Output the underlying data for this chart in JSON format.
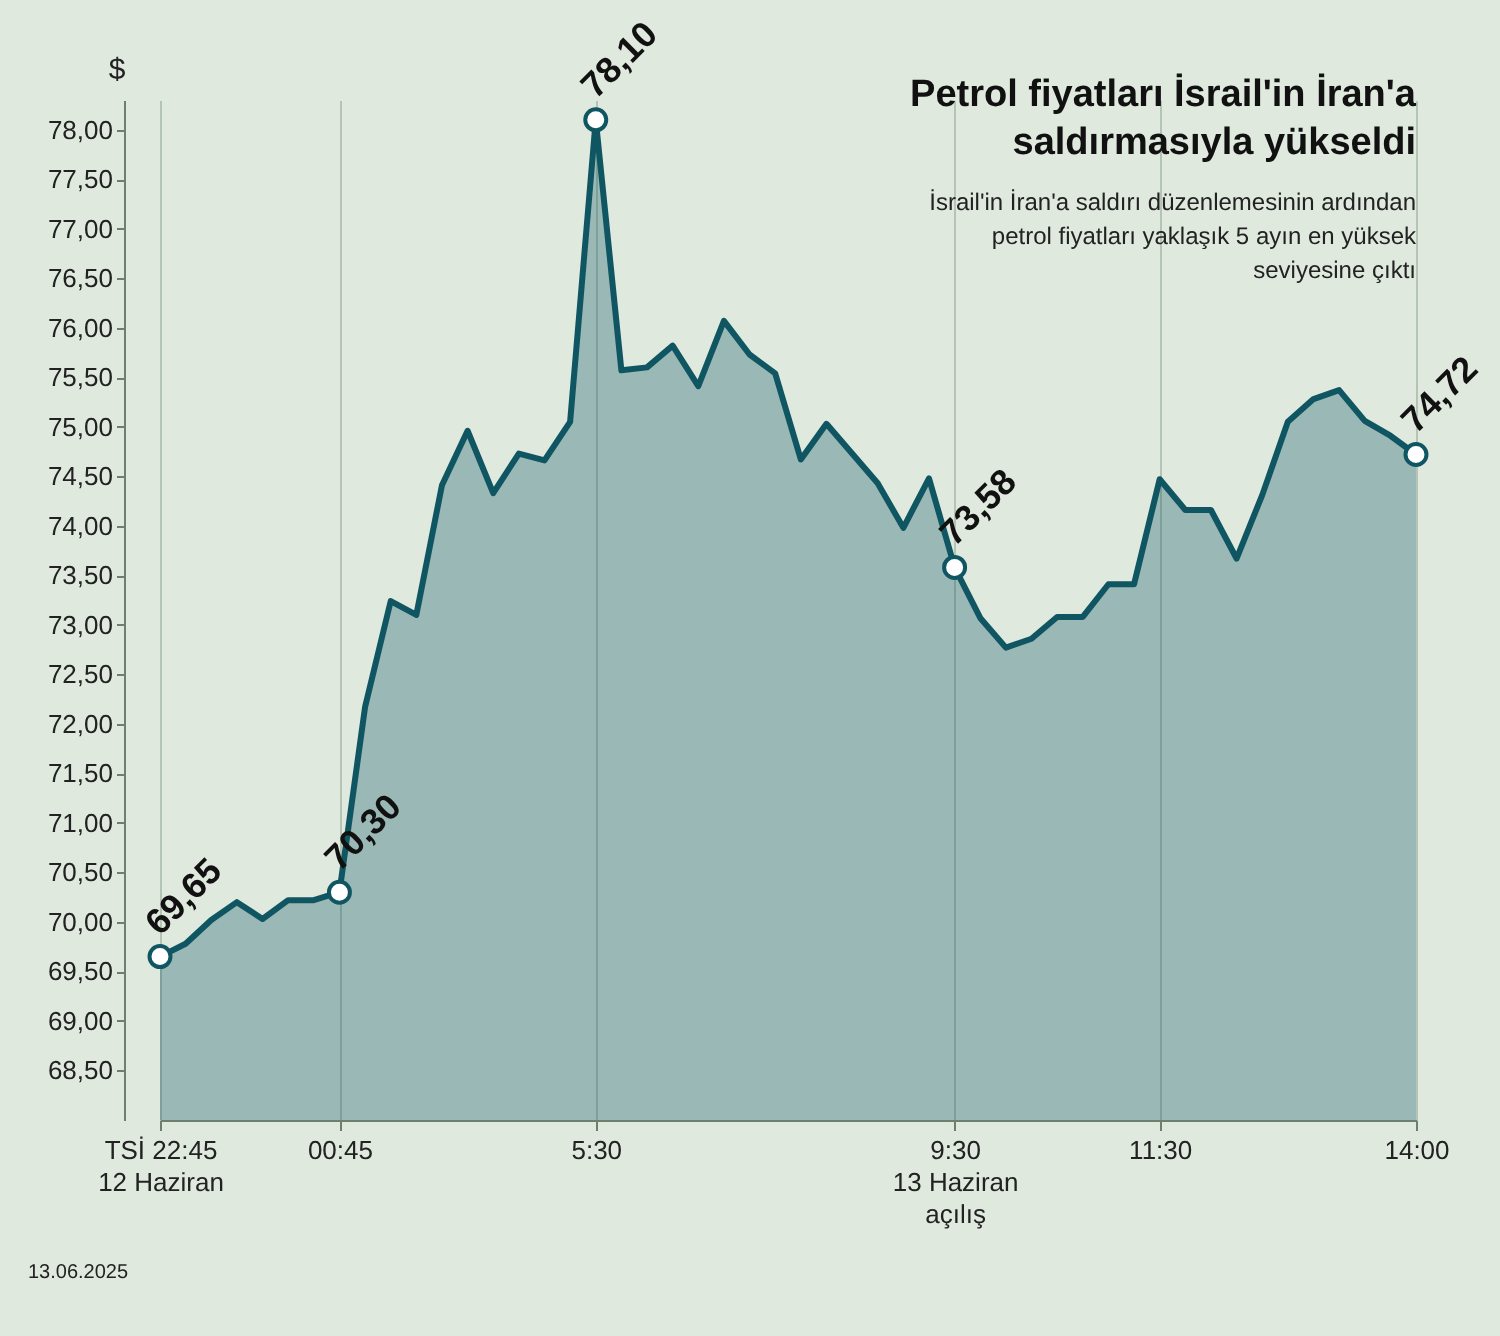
{
  "chart_data": {
    "type": "area",
    "title": "Petrol fiyatları İsrail'in İran'a saldırmasıyla yükseldi",
    "subtitle": "İsrail'in İran'a saldırı düzenlemesinin ardından petrol fiyatları yaklaşık 5 ayın en yüksek seviyesine çıktı",
    "ylabel": "$",
    "annotations": [
      "13.06.2025"
    ],
    "categories": [
      "TSİ 22:45\n12 Haziran",
      null,
      null,
      null,
      null,
      null,
      null,
      "00:45",
      null,
      null,
      null,
      null,
      null,
      null,
      null,
      null,
      null,
      "5:30",
      null,
      null,
      null,
      null,
      null,
      null,
      null,
      null,
      null,
      null,
      null,
      null,
      null,
      "9:30\n13 Haziran\naçılış",
      null,
      null,
      null,
      null,
      null,
      null,
      null,
      "11:30",
      null,
      null,
      null,
      null,
      null,
      null,
      null,
      null,
      null,
      "14:00"
    ],
    "series": [
      {
        "color": "#0f5662",
        "values": [
          69.65,
          69.78,
          70.02,
          70.2,
          70.03,
          70.22,
          70.22,
          70.3,
          72.17,
          73.24,
          73.1,
          74.41,
          74.96,
          74.33,
          74.73,
          74.66,
          75.05,
          78.1,
          75.57,
          75.6,
          75.82,
          75.41,
          76.07,
          75.73,
          75.54,
          74.67,
          75.03,
          74.73,
          74.43,
          73.98,
          74.48,
          73.58,
          73.07,
          72.77,
          72.86,
          73.08,
          73.08,
          73.41,
          73.41,
          74.47,
          74.16,
          74.16,
          73.67,
          74.31,
          75.05,
          75.28,
          75.37,
          75.06,
          74.91,
          74.72
        ],
        "value_labels": [
          "69,65",
          null,
          null,
          null,
          null,
          null,
          null,
          "70,30",
          null,
          null,
          null,
          null,
          null,
          null,
          null,
          null,
          null,
          "78,10",
          null,
          null,
          null,
          null,
          null,
          null,
          null,
          null,
          null,
          null,
          null,
          null,
          null,
          "73,58",
          null,
          null,
          null,
          null,
          null,
          null,
          null,
          null,
          null,
          null,
          null,
          null,
          null,
          null,
          null,
          null,
          null,
          "74,72"
        ]
      }
    ],
    "ylim": [
      68,
      78.3
    ],
    "yticks": [
      {
        "value": 68.5,
        "label": "68,50"
      },
      {
        "value": 69,
        "label": "69,00"
      },
      {
        "value": 69.5,
        "label": "69,50"
      },
      {
        "value": 70,
        "label": "70,00"
      },
      {
        "value": 70.5,
        "label": "70,50"
      },
      {
        "value": 71,
        "label": "71,00"
      },
      {
        "value": 71.5,
        "label": "71,50"
      },
      {
        "value": 72,
        "label": "72,00"
      },
      {
        "value": 72.5,
        "label": "72,50"
      },
      {
        "value": 73,
        "label": "73,00"
      },
      {
        "value": 73.5,
        "label": "73,50"
      },
      {
        "value": 74,
        "label": "74,00"
      },
      {
        "value": 74.5,
        "label": "74,50"
      },
      {
        "value": 75,
        "label": "75,00"
      },
      {
        "value": 75.5,
        "label": "75,50"
      },
      {
        "value": 76,
        "label": "76,00"
      },
      {
        "value": 76.5,
        "label": "76,50"
      },
      {
        "value": 77,
        "label": "77,00"
      },
      {
        "value": 77.5,
        "label": "77,50"
      },
      {
        "value": 78,
        "label": "78,00"
      }
    ],
    "grid": "x"
  }
}
